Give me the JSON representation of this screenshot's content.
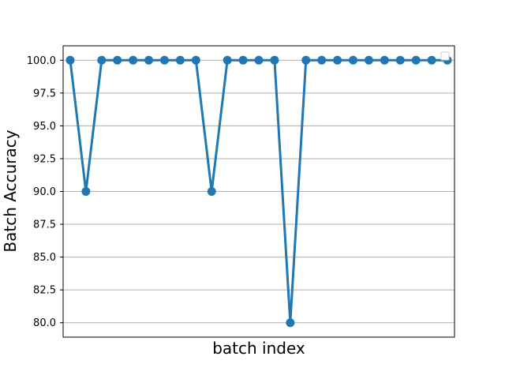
{
  "chart_data": {
    "type": "line",
    "title": "",
    "xlabel": "batch index",
    "ylabel": "Batch Accuracy",
    "x": [
      0,
      1,
      2,
      3,
      4,
      5,
      6,
      7,
      8,
      9,
      10,
      11,
      12,
      13,
      14,
      15,
      16,
      17,
      18,
      19,
      20,
      21,
      22,
      23,
      24
    ],
    "series": [
      {
        "values": [
          100,
          90,
          100,
          100,
          100,
          100,
          100,
          100,
          100,
          90,
          100,
          100,
          100,
          100,
          80,
          100,
          100,
          100,
          100,
          100,
          100,
          100,
          100,
          100,
          100
        ],
        "color": "#1f77b4"
      }
    ],
    "xlim": [
      -0.45,
      24.45
    ],
    "ylim": [
      78.9,
      101.1
    ],
    "yticks": [
      80.0,
      82.5,
      85.0,
      87.5,
      90.0,
      92.5,
      95.0,
      97.5,
      100.0
    ],
    "ytick_labels": [
      "80.0",
      "82.5",
      "85.0",
      "87.5",
      "90.0",
      "92.5",
      "95.0",
      "97.5",
      "100.0"
    ],
    "x_ticks_visible": false,
    "grid": "y-axis horizontal lines",
    "legend": "top-right (empty)",
    "colors": {
      "line": "#1f77b4",
      "grid": "#b0b0b0",
      "axes": "#000000"
    }
  }
}
